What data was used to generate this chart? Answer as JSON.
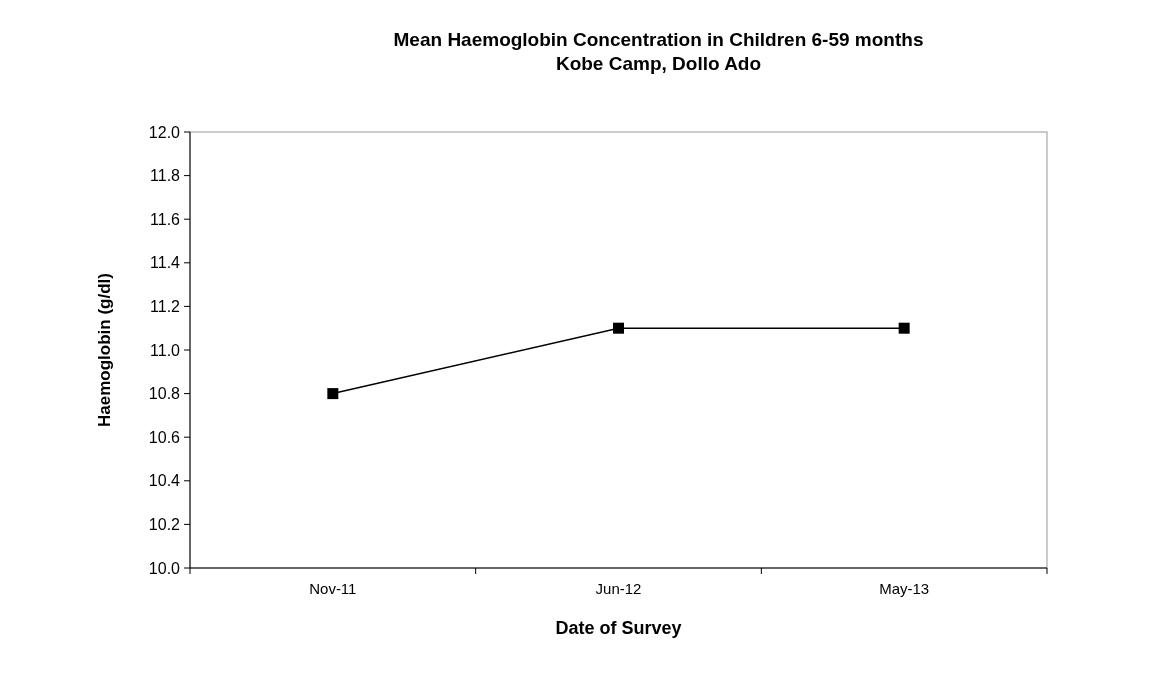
{
  "chart_data": {
    "type": "line",
    "title": "Mean Haemoglobin Concentration in Children 6-59 months\nKobe Camp, Dollo Ado",
    "xlabel": "Date of Survey",
    "ylabel": "Haemoglobin (g/dl)",
    "categories": [
      "Nov-11",
      "Jun-12",
      "May-13"
    ],
    "series": [
      {
        "color": "#000000",
        "values": [
          10.8,
          11.1,
          11.1
        ]
      }
    ],
    "ylim": [
      10.0,
      12.0
    ],
    "yticks": [
      {
        "value": 10,
        "label": "10.0"
      },
      {
        "value": 10.2,
        "label": "10.2"
      },
      {
        "value": 10.4,
        "label": "10.4"
      },
      {
        "value": 10.6,
        "label": "10.6"
      },
      {
        "value": 10.8,
        "label": "10.8"
      },
      {
        "value": 11,
        "label": "11.0"
      },
      {
        "value": 11.2,
        "label": "11.2"
      },
      {
        "value": 11.4,
        "label": "11.4"
      },
      {
        "value": 11.6,
        "label": "11.6"
      },
      {
        "value": 11.8,
        "label": "11.8"
      },
      {
        "value": 12,
        "label": "12.0"
      }
    ],
    "grid": false,
    "marker": "square",
    "line_style": "solid"
  }
}
